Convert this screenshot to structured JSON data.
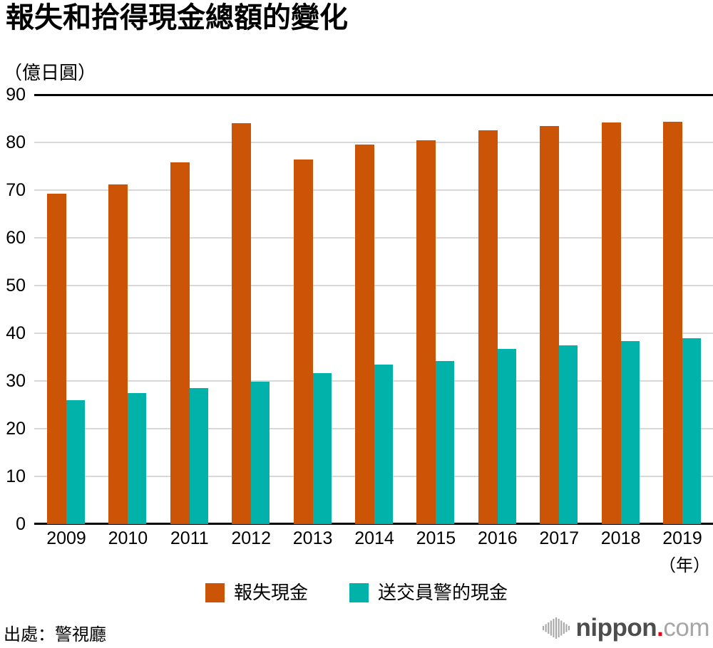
{
  "title": "報失和拾得現金總額的變化",
  "unit_label": "（億日圓）",
  "year_suffix": "（年）",
  "source": "出處：警視廳",
  "logo": {
    "name": "nippon",
    "dot": ".",
    "tld": "com",
    "mark": "nippon-waveform-icon"
  },
  "colors": {
    "lost": "#cc5406",
    "found": "#00b2a9",
    "grid": "#d8d8d8",
    "axis": "#000000",
    "logo_dark": "#4d4d4d",
    "logo_light": "#a6a6a6",
    "logo_dot": "#e60012",
    "logo_mark": "#a8a8a8"
  },
  "chart_data": {
    "type": "bar",
    "title": "報失和拾得現金總額的變化",
    "ylabel": "（億日圓）",
    "xlabel": "（年）",
    "ylim": [
      0,
      90
    ],
    "y_ticks": [
      0,
      10,
      20,
      30,
      40,
      50,
      60,
      70,
      80,
      90
    ],
    "grid": true,
    "legend_position": "bottom",
    "categories": [
      "2009",
      "2010",
      "2011",
      "2012",
      "2013",
      "2014",
      "2015",
      "2016",
      "2017",
      "2018",
      "2019"
    ],
    "series": [
      {
        "name": "報失現金",
        "color_key": "lost",
        "values": [
          69.2,
          71.2,
          75.8,
          84.1,
          76.4,
          79.6,
          80.4,
          82.6,
          83.4,
          84.2,
          84.4
        ]
      },
      {
        "name": "送交員警的現金",
        "color_key": "found",
        "values": [
          25.9,
          27.4,
          28.5,
          29.8,
          31.6,
          33.4,
          34.2,
          36.7,
          37.5,
          38.3,
          38.9
        ]
      }
    ]
  }
}
